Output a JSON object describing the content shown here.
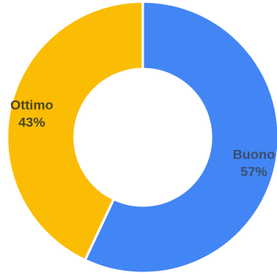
{
  "chart_data": {
    "type": "pie",
    "variant": "donut",
    "title": "",
    "categories": [
      "Buono",
      "Ottimo"
    ],
    "values": [
      57,
      43
    ],
    "unit": "%",
    "data_labels": [
      {
        "category": "Buono",
        "percent": "57%"
      },
      {
        "category": "Ottimo",
        "percent": "43%"
      }
    ],
    "colors": [
      "#4285f4",
      "#fbbc04"
    ],
    "label_colors": [
      "#3a4f6e",
      "#4d4520"
    ],
    "legend": "none",
    "start_angle": "top, clockwise"
  }
}
